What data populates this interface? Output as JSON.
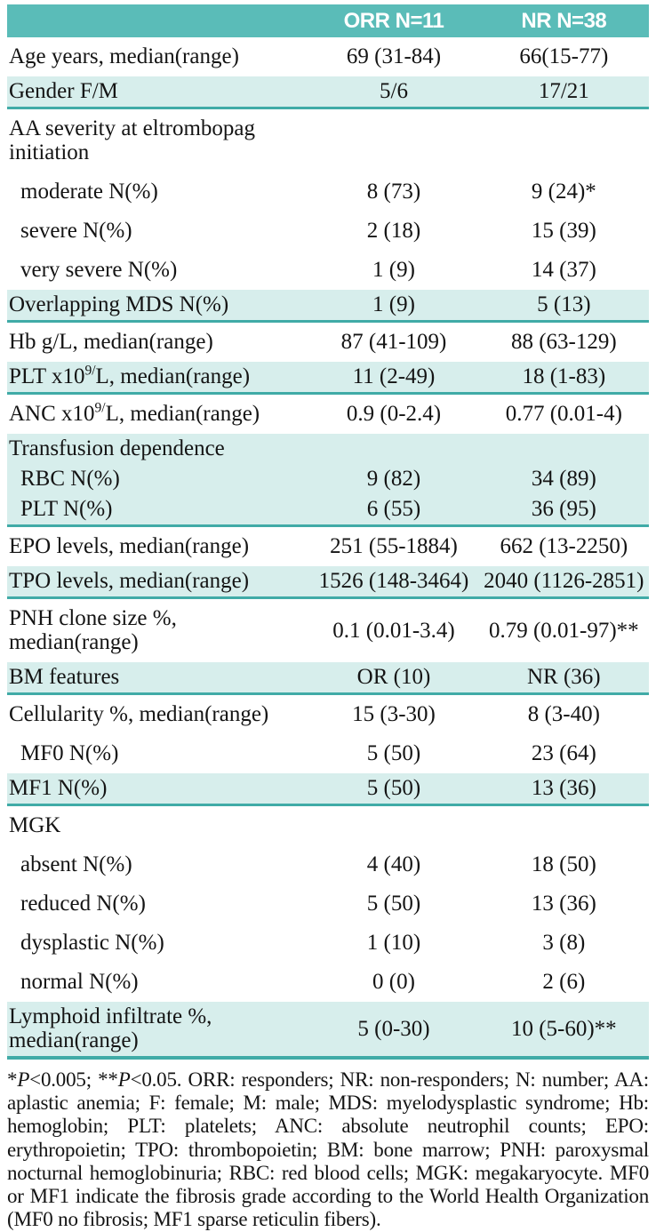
{
  "colors": {
    "header_teal": "#5abcb8",
    "row_teal": "#d7eeec",
    "border_teal": "#40aba7",
    "text": "#141414",
    "header_text": "#ffffff",
    "page_bg": "#ffffff"
  },
  "table": {
    "columns": [
      "",
      "ORR N=11",
      "NR N=38"
    ],
    "rows": [
      {
        "label": "Age years, median(range)",
        "orr": "69 (31-84)",
        "nr": "66(15-77)",
        "bg": "white",
        "border": false,
        "indent": false
      },
      {
        "label": "Gender F/M",
        "orr": "5/6",
        "nr": "17/21",
        "bg": "teal",
        "border": true,
        "indent": false
      },
      {
        "label": "AA severity at eltrombopag initiation",
        "orr": "",
        "nr": "",
        "bg": "white",
        "border": false,
        "indent": false
      },
      {
        "label": "moderate N(%)",
        "orr": "8 (73)",
        "nr": "9 (24)*",
        "bg": "white",
        "border": false,
        "indent": true
      },
      {
        "label": "severe N(%)",
        "orr": "2 (18)",
        "nr": "15 (39)",
        "bg": "white",
        "border": false,
        "indent": true
      },
      {
        "label": "very severe N(%)",
        "orr": "1 (9)",
        "nr": "14 (37)",
        "bg": "white",
        "border": false,
        "indent": true
      },
      {
        "label": "Overlapping MDS N(%)",
        "orr": "1 (9)",
        "nr": "5 (13)",
        "bg": "teal",
        "border": true,
        "indent": false
      },
      {
        "label": "Hb g/L, median(range)",
        "orr": "87 (41-109)",
        "nr": "88 (63-129)",
        "bg": "white",
        "border": false,
        "indent": false
      },
      {
        "label": "PLT x10⁹/L, median(range)",
        "parts": [
          {
            "t": "PLT x10"
          },
          {
            "t": "9/",
            "sup": true
          },
          {
            "t": "L, median(range)"
          }
        ],
        "orr": "11 (2-49)",
        "nr": "18 (1-83)",
        "bg": "teal",
        "border": true,
        "indent": false
      },
      {
        "label": "ANC x10⁹/L, median(range)",
        "parts": [
          {
            "t": "ANC x10"
          },
          {
            "t": "9/",
            "sup": true
          },
          {
            "t": "L, median(range)"
          }
        ],
        "orr": "0.9 (0-2.4)",
        "nr": "0.77 (0.01-4)",
        "bg": "white",
        "border": false,
        "indent": false
      },
      {
        "label": "Transfusion dependence",
        "orr": "",
        "nr": "",
        "bg": "teal",
        "border": false,
        "indent": false
      },
      {
        "label": "RBC N(%)",
        "orr": "9 (82)",
        "nr": "34 (89)",
        "bg": "teal",
        "border": false,
        "indent": true
      },
      {
        "label": "PLT N(%)",
        "orr": "6 (55)",
        "nr": "36 (95)",
        "bg": "teal",
        "border": true,
        "indent": true
      },
      {
        "label": "EPO levels, median(range)",
        "orr": "251 (55-1884)",
        "nr": "662 (13-2250)",
        "bg": "white",
        "border": false,
        "indent": false
      },
      {
        "label": "TPO levels, median(range)",
        "orr": "1526 (148-3464)",
        "nr": "2040 (1126-2851)",
        "bg": "teal",
        "border": true,
        "indent": false
      },
      {
        "label": "PNH clone size %, median(range)",
        "orr": "0.1 (0.01-3.4)",
        "nr": "0.79 (0.01-97)**",
        "bg": "white",
        "border": false,
        "indent": false
      },
      {
        "label": "BM features",
        "orr": "OR (10)",
        "nr": "NR (36)",
        "bg": "teal",
        "border": true,
        "indent": false
      },
      {
        "label": "Cellularity %, median(range)",
        "orr": "15 (3-30)",
        "nr": "8 (3-40)",
        "bg": "white",
        "border": false,
        "indent": false
      },
      {
        "label": "MF0 N(%)",
        "orr": "5 (50)",
        "nr": "23 (64)",
        "bg": "white",
        "border": false,
        "indent": true
      },
      {
        "label": "MF1 N(%)",
        "orr": "5 (50)",
        "nr": "13 (36)",
        "bg": "teal",
        "border": true,
        "indent": false
      },
      {
        "label": "MGK",
        "orr": "",
        "nr": "",
        "bg": "white",
        "border": false,
        "indent": false
      },
      {
        "label": "absent N(%)",
        "orr": "4 (40)",
        "nr": "18 (50)",
        "bg": "white",
        "border": false,
        "indent": true
      },
      {
        "label": "reduced N(%)",
        "orr": "5 (50)",
        "nr": "13 (36)",
        "bg": "white",
        "border": false,
        "indent": true
      },
      {
        "label": "dysplastic N(%)",
        "orr": "1 (10)",
        "nr": "3 (8)",
        "bg": "white",
        "border": false,
        "indent": true
      },
      {
        "label": "normal N(%)",
        "orr": "0 (0)",
        "nr": "2 (6)",
        "bg": "white",
        "border": false,
        "indent": true
      },
      {
        "label": "Lymphoid infiltrate %, median(range)",
        "orr": "5 (0-30)",
        "nr": "10 (5-60)**",
        "bg": "teal",
        "border": "thick",
        "indent": false
      }
    ]
  },
  "footnote": {
    "text": "*P<0.005; **P<0.05. ORR: responders; NR: non-responders; N: number; AA: aplastic anemia; F: female; M: male; MDS: myelodysplastic syndrome; Hb: hemoglobin; PLT: platelets; ANC: absolute neutrophil counts; EPO: erythropoietin; TPO: thrombopoietin; BM: bone marrow; PNH: paroxysmal nocturnal hemoglobinuria; RBC: red blood cells; MGK: megakaryocyte. MF0 or MF1 indicate the fibrosis grade according to the World Health Organization (MF0 no fibrosis; MF1 sparse reticulin fibers).",
    "segments": [
      {
        "t": "*",
        "i": false
      },
      {
        "t": "P",
        "i": true
      },
      {
        "t": "<0.005; **",
        "i": false
      },
      {
        "t": "P",
        "i": true
      },
      {
        "t": "<0.05. ORR: responders; NR: non-responders; N: number; AA: aplastic anemia; F: female; M: male; MDS: myelodysplastic syndrome; Hb: hemoglobin; PLT: platelets; ANC: absolute neutrophil counts; EPO: erythropoietin; TPO: thrombopoietin; BM: bone marrow; PNH: paroxysmal nocturnal hemoglobinuria; RBC: red blood cells; MGK: megakaryocyte. MF0 or MF1 indicate the fibrosis grade according to the World Health Organization (MF0 no fibrosis; MF1 sparse reticulin fibers).",
        "i": false
      }
    ]
  }
}
